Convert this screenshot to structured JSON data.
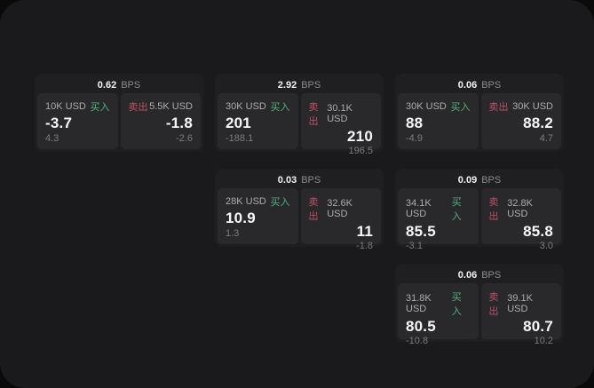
{
  "labels": {
    "bps": "BPS",
    "buy": "买入",
    "sell": "卖出"
  },
  "colors": {
    "buy": "#4fb37e",
    "sell": "#c14f63",
    "panel_background": "#1a1a1c",
    "card_background": "#1f1f21",
    "tile_background": "#29292b",
    "page_background": "#0a0a0b"
  },
  "cards": [
    {
      "bps": "0.62",
      "col": 1,
      "row": 1,
      "buy": {
        "size": "10K USD",
        "value": "-3.7",
        "delta": "4.3"
      },
      "sell": {
        "size": "5.5K USD",
        "value": "-1.8",
        "delta": "-2.6"
      }
    },
    {
      "bps": "2.92",
      "col": 2,
      "row": 1,
      "buy": {
        "size": "30K USD",
        "value": "201",
        "delta": "-188.1"
      },
      "sell": {
        "size": "30.1K USD",
        "value": "210",
        "delta": "196.5"
      }
    },
    {
      "bps": "0.06",
      "col": 3,
      "row": 1,
      "buy": {
        "size": "30K USD",
        "value": "88",
        "delta": "-4.9"
      },
      "sell": {
        "size": "30K USD",
        "value": "88.2",
        "delta": "4.7"
      }
    },
    {
      "bps": "0.03",
      "col": 2,
      "row": 2,
      "buy": {
        "size": "28K USD",
        "value": "10.9",
        "delta": "1.3"
      },
      "sell": {
        "size": "32.6K USD",
        "value": "11",
        "delta": "-1.8"
      }
    },
    {
      "bps": "0.09",
      "col": 3,
      "row": 2,
      "buy": {
        "size": "34.1K USD",
        "value": "85.5",
        "delta": "-3.1"
      },
      "sell": {
        "size": "32.8K USD",
        "value": "85.8",
        "delta": "3.0"
      }
    },
    {
      "bps": "0.06",
      "col": 3,
      "row": 3,
      "buy": {
        "size": "31.8K USD",
        "value": "80.5",
        "delta": "-10.8"
      },
      "sell": {
        "size": "39.1K USD",
        "value": "80.7",
        "delta": "10.2"
      }
    }
  ]
}
